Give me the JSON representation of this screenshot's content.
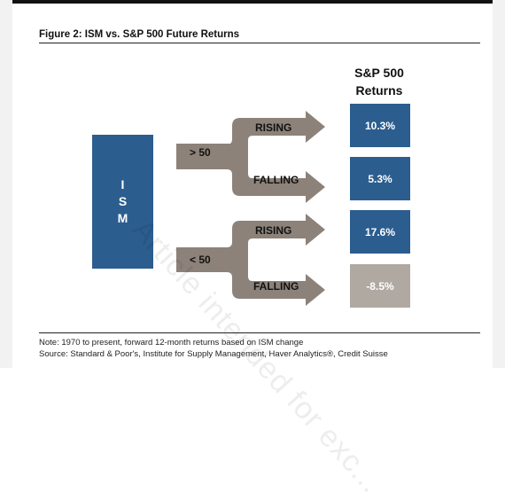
{
  "figure": {
    "title": "Figure 2: ISM vs. S&P 500 Future Returns",
    "column_header": "S&P 500 Returns",
    "ism_label": "ISM",
    "branches": [
      {
        "condition": "> 50",
        "outcomes": [
          {
            "label": "RISING",
            "return": "10.3%",
            "color": "#2c5d8f"
          },
          {
            "label": "FALLING",
            "return": "5.3%",
            "color": "#2c5d8f"
          }
        ]
      },
      {
        "condition": "< 50",
        "outcomes": [
          {
            "label": "RISING",
            "return": "17.6%",
            "color": "#2c5d8f"
          },
          {
            "label": "FALLING",
            "return": "-8.5%",
            "color": "#b0a9a2"
          }
        ]
      }
    ],
    "arrow_color": "#8c827a",
    "note": "Note: 1970 to present, forward 12-month returns based on ISM change",
    "source": "Source: Standard & Poor's, Institute for Supply Management, Haver Analytics®, Credit Suisse",
    "watermark": "Article intended for exc..."
  }
}
